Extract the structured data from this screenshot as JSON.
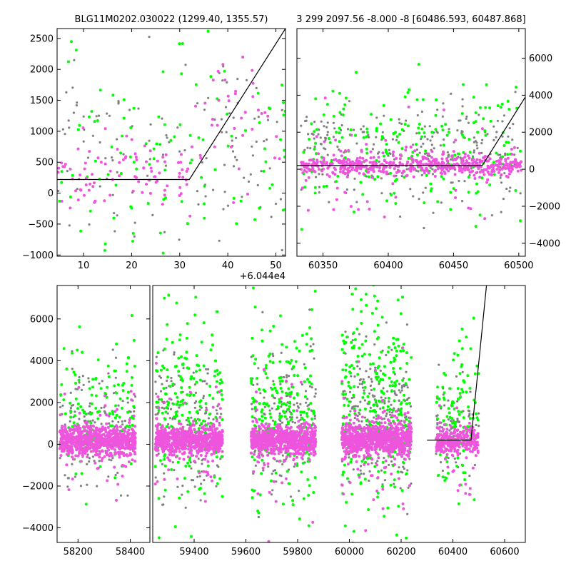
{
  "colors": {
    "gray": "#808080",
    "green": "#00ff00",
    "pink": "#ee55dd",
    "model": "#000000"
  },
  "chart_data": [
    {
      "id": "top_left",
      "type": "scatter",
      "title": "BLG11M0202.030022 (1299.40, 1355.57)",
      "offset_label": "+6.044e4",
      "xlim": [
        4.5,
        52
      ],
      "ylim": [
        -1020,
        2660
      ],
      "xticks": [
        10,
        20,
        30,
        40,
        50
      ],
      "yticks": [
        -1000,
        -500,
        0,
        500,
        1000,
        1500,
        2000,
        2500
      ],
      "y_axis_side": "left",
      "model_line": {
        "x": [
          4.5,
          32.0,
          52.0
        ],
        "y": [
          220,
          220,
          2660
        ]
      },
      "clusters": [
        {
          "series": "gray",
          "n": 130,
          "x": [
            4.5,
            52
          ],
          "y_mean": 700,
          "y_sd": 750,
          "seed": 11
        },
        {
          "series": "green",
          "n": 110,
          "x": [
            4.5,
            52
          ],
          "y_mean": 700,
          "y_sd": 800,
          "seed": 12
        },
        {
          "series": "pink",
          "n": 90,
          "x": [
            4.5,
            32
          ],
          "y_mean": 350,
          "y_sd": 260,
          "seed": 13
        },
        {
          "series": "pink",
          "n": 40,
          "x": [
            32,
            52
          ],
          "y_mean": 1100,
          "y_sd": 700,
          "seed": 14
        }
      ]
    },
    {
      "id": "top_right",
      "type": "scatter",
      "title": "3 299 2097.56 -8.000 -8 [60486.593, 60487.868]",
      "xlim": [
        60330,
        60505
      ],
      "ylim": [
        -4700,
        7600
      ],
      "xticks": [
        60350,
        60400,
        60450,
        60500
      ],
      "yticks": [
        -4000,
        -2000,
        0,
        2000,
        4000,
        6000
      ],
      "y_axis_side": "right",
      "model_line": {
        "x": [
          60330,
          60472,
          60505
        ],
        "y": [
          200,
          200,
          3900
        ]
      },
      "clusters": [
        {
          "series": "gray",
          "n": 260,
          "x": [
            60333,
            60502
          ],
          "y_mean": 900,
          "y_sd": 1300,
          "seed": 21
        },
        {
          "series": "green",
          "n": 210,
          "x": [
            60333,
            60502
          ],
          "y_mean": 900,
          "y_sd": 1800,
          "seed": 22
        },
        {
          "series": "pink",
          "n": 520,
          "x": [
            60333,
            60502
          ],
          "y_mean": 200,
          "y_sd": 260,
          "seed": 23
        },
        {
          "series": "pink",
          "n": 60,
          "x": [
            60333,
            60502
          ],
          "y_mean": 200,
          "y_sd": 1500,
          "seed": 24
        }
      ]
    },
    {
      "id": "bottom_left",
      "type": "scatter",
      "title": "",
      "xlim": [
        58120,
        58475
      ],
      "ylim": [
        -4700,
        7600
      ],
      "xticks": [
        58200,
        58400
      ],
      "yticks": [
        -4000,
        -2000,
        0,
        2000,
        4000,
        6000
      ],
      "y_axis_side": "left",
      "clusters": [
        {
          "series": "gray",
          "n": 150,
          "x": [
            58130,
            58420
          ],
          "y_mean": 700,
          "y_sd": 1300,
          "seed": 31
        },
        {
          "series": "green",
          "n": 130,
          "x": [
            58130,
            58420
          ],
          "y_mean": 1400,
          "y_sd": 1600,
          "seed": 32
        },
        {
          "series": "pink",
          "n": 700,
          "x": [
            58130,
            58420
          ],
          "y_mean": 150,
          "y_sd": 320,
          "seed": 33
        },
        {
          "series": "pink",
          "n": 80,
          "x": [
            58130,
            58420
          ],
          "y_mean": 0,
          "y_sd": 1200,
          "seed": 34
        }
      ]
    },
    {
      "id": "bottom_right",
      "type": "scatter",
      "title": "",
      "xlim": [
        59240,
        60680
      ],
      "ylim": [
        -4700,
        7600
      ],
      "xticks": [
        59400,
        59600,
        59800,
        60000,
        60200,
        60400,
        60600
      ],
      "yticks": [],
      "y_axis_side": "none",
      "model_line": {
        "x": [
          60300,
          60470,
          60530
        ],
        "y": [
          200,
          200,
          7600
        ]
      },
      "clusters": [
        {
          "series": "gray",
          "n": 180,
          "x": [
            59250,
            59510
          ],
          "y_mean": 800,
          "y_sd": 1700,
          "seed": 41
        },
        {
          "series": "green",
          "n": 200,
          "x": [
            59250,
            59510
          ],
          "y_mean": 2000,
          "y_sd": 2200,
          "seed": 42
        },
        {
          "series": "pink",
          "n": 700,
          "x": [
            59250,
            59510
          ],
          "y_mean": 200,
          "y_sd": 300,
          "seed": 43
        },
        {
          "series": "pink",
          "n": 60,
          "x": [
            59250,
            59510
          ],
          "y_mean": 0,
          "y_sd": 1400,
          "seed": 44
        },
        {
          "series": "gray",
          "n": 170,
          "x": [
            59620,
            59870
          ],
          "y_mean": 900,
          "y_sd": 1700,
          "seed": 51
        },
        {
          "series": "green",
          "n": 220,
          "x": [
            59620,
            59870
          ],
          "y_mean": 1700,
          "y_sd": 2300,
          "seed": 52
        },
        {
          "series": "pink",
          "n": 650,
          "x": [
            59620,
            59870
          ],
          "y_mean": 200,
          "y_sd": 350,
          "seed": 53
        },
        {
          "series": "pink",
          "n": 60,
          "x": [
            59620,
            59870
          ],
          "y_mean": 0,
          "y_sd": 1400,
          "seed": 54
        },
        {
          "series": "gray",
          "n": 260,
          "x": [
            59970,
            60240
          ],
          "y_mean": 1300,
          "y_sd": 1600,
          "seed": 61
        },
        {
          "series": "green",
          "n": 300,
          "x": [
            59970,
            60240
          ],
          "y_mean": 2200,
          "y_sd": 2600,
          "seed": 62
        },
        {
          "series": "pink",
          "n": 800,
          "x": [
            59970,
            60240
          ],
          "y_mean": 250,
          "y_sd": 380,
          "seed": 63
        },
        {
          "series": "pink",
          "n": 80,
          "x": [
            59970,
            60240
          ],
          "y_mean": 0,
          "y_sd": 1600,
          "seed": 64
        },
        {
          "series": "gray",
          "n": 90,
          "x": [
            60335,
            60500
          ],
          "y_mean": 800,
          "y_sd": 1200,
          "seed": 71
        },
        {
          "series": "green",
          "n": 110,
          "x": [
            60335,
            60500
          ],
          "y_mean": 1500,
          "y_sd": 2000,
          "seed": 72
        },
        {
          "series": "pink",
          "n": 260,
          "x": [
            60335,
            60500
          ],
          "y_mean": 200,
          "y_sd": 300,
          "seed": 73
        },
        {
          "series": "pink",
          "n": 30,
          "x": [
            60335,
            60500
          ],
          "y_mean": 0,
          "y_sd": 1200,
          "seed": 74
        }
      ]
    }
  ]
}
